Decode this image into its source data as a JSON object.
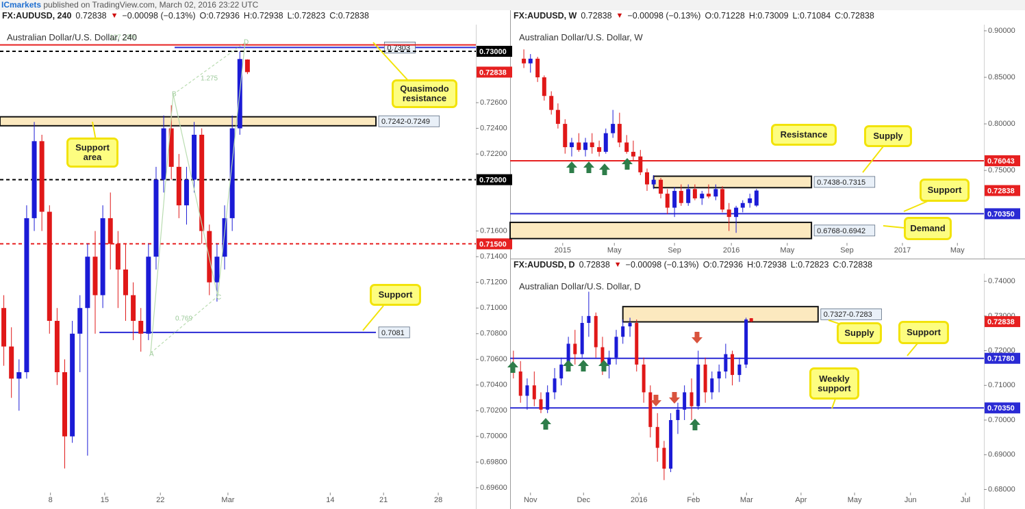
{
  "header": {
    "brand": "ICmarkets",
    "text": "published on TradingView.com, March 02, 2016 23:22 UTC"
  },
  "chart_data": [
    {
      "type": "candlestick",
      "symbol": "FX:AUDUSD, 240",
      "last": "0.72838",
      "direction": "▼",
      "change": "−0.00098 (−0.13%)",
      "ohlc": [
        "O:0.72936",
        "H:0.72938",
        "L:0.72823",
        "C:0.72838"
      ],
      "title": "Australian Dollar/U.S. Dollar, 240",
      "up_color": "#1b1bd6",
      "down_color": "#e01818",
      "xlim": [
        0,
        100
      ],
      "xticks": [
        {
          "value": 10.6,
          "label": "8"
        },
        {
          "value": 22,
          "label": "15"
        },
        {
          "value": 33.7,
          "label": "22"
        },
        {
          "value": 47.9,
          "label": "Mar"
        },
        {
          "value": 69.4,
          "label": "14"
        },
        {
          "value": 80.6,
          "label": "21"
        },
        {
          "value": 92.1,
          "label": "28"
        }
      ],
      "ylim": [
        0.69562,
        0.73208
      ],
      "yticks": [
        {
          "value": 0.726,
          "label": "0.72600"
        },
        {
          "value": 0.724,
          "label": "0.72400"
        },
        {
          "value": 0.722,
          "label": "0.72200"
        },
        {
          "value": 0.716,
          "label": "0.71600"
        },
        {
          "value": 0.714,
          "label": "0.71400"
        },
        {
          "value": 0.712,
          "label": "0.71200"
        },
        {
          "value": 0.71,
          "label": "0.71000"
        },
        {
          "value": 0.708,
          "label": "0.70800"
        },
        {
          "value": 0.706,
          "label": "0.70600"
        },
        {
          "value": 0.704,
          "label": "0.70400"
        },
        {
          "value": 0.702,
          "label": "0.70200"
        },
        {
          "value": 0.7,
          "label": "0.70000"
        },
        {
          "value": 0.698,
          "label": "0.69800"
        },
        {
          "value": 0.696,
          "label": "0.69600"
        }
      ],
      "x": [
        0.8,
        2.4,
        4.0,
        5.6,
        7.2,
        8.8,
        10.4,
        12.0,
        13.6,
        15.2,
        16.8,
        18.4,
        20.0,
        21.6,
        23.2,
        24.8,
        26.4,
        28.0,
        29.6,
        31.2,
        32.8,
        34.4,
        36.0,
        37.6,
        39.2,
        40.8,
        42.4,
        44.0,
        45.6,
        47.2,
        48.8,
        50.4,
        52.0
      ],
      "open": [
        0.71,
        0.707,
        0.7045,
        0.705,
        0.717,
        0.723,
        0.7175,
        0.709,
        0.705,
        0.7,
        0.708,
        0.71,
        0.714,
        0.711,
        0.717,
        0.715,
        0.713,
        0.711,
        0.709,
        0.708,
        0.714,
        0.72,
        0.724,
        0.721,
        0.718,
        0.72,
        0.7235,
        0.716,
        0.712,
        0.714,
        0.717,
        0.724,
        0.72936
      ],
      "high": [
        0.711,
        0.7085,
        0.706,
        0.718,
        0.7245,
        0.7235,
        0.718,
        0.71,
        0.706,
        0.709,
        0.711,
        0.715,
        0.716,
        0.718,
        0.719,
        0.716,
        0.715,
        0.712,
        0.71,
        0.715,
        0.721,
        0.725,
        0.7258,
        0.722,
        0.721,
        0.7245,
        0.724,
        0.7165,
        0.715,
        0.718,
        0.725,
        0.73,
        0.72938
      ],
      "low": [
        0.7055,
        0.703,
        0.702,
        0.7045,
        0.716,
        0.716,
        0.708,
        0.704,
        0.6975,
        0.6995,
        0.705,
        0.6985,
        0.708,
        0.71,
        0.713,
        0.71,
        0.709,
        0.7075,
        0.7066,
        0.7075,
        0.713,
        0.719,
        0.72,
        0.717,
        0.7165,
        0.719,
        0.715,
        0.711,
        0.7105,
        0.713,
        0.716,
        0.7235,
        0.72823
      ],
      "close": [
        0.707,
        0.7045,
        0.705,
        0.717,
        0.723,
        0.7175,
        0.709,
        0.705,
        0.7,
        0.708,
        0.71,
        0.714,
        0.711,
        0.717,
        0.715,
        0.713,
        0.711,
        0.709,
        0.708,
        0.714,
        0.72,
        0.724,
        0.721,
        0.718,
        0.72,
        0.7235,
        0.716,
        0.712,
        0.714,
        0.717,
        0.724,
        0.7294,
        0.72838
      ],
      "zones": [
        {
          "low": 0.7242,
          "high": 0.7249,
          "label": "0.7242-0.7249",
          "x_start": 0,
          "x_end": 79
        }
      ],
      "levels": [
        {
          "value": 0.7303,
          "color": "#2a2ad4",
          "style": "solid",
          "label": "0.7303",
          "x_start": 36.7
        },
        {
          "value": 0.7305,
          "color": "#e62020",
          "style": "solid"
        },
        {
          "value": 0.73,
          "color": "#000000",
          "style": "dashed"
        },
        {
          "value": 0.72,
          "color": "#000000",
          "style": "dashed"
        },
        {
          "value": 0.715,
          "color": "#e62020",
          "style": "dashed"
        },
        {
          "value": 0.7081,
          "color": "#2a2ad4",
          "style": "solid",
          "label": "0.7081",
          "x_start": 20.9,
          "x_end": 79
        }
      ],
      "price_labels": [
        {
          "value": 0.73,
          "label": "0.73000",
          "color": "#000000"
        },
        {
          "value": 0.72838,
          "label": "0.72838",
          "color": "#e62020"
        },
        {
          "value": 0.72,
          "label": "0.72000",
          "color": "#000000"
        },
        {
          "value": 0.715,
          "label": "0.71500",
          "color": "#e62020"
        }
      ],
      "pattern": {
        "points": [
          "A",
          "B",
          "C",
          "D"
        ],
        "ratios": [
          "1.275",
          "0.769"
        ],
        "extension": "127.20%"
      },
      "annotations": [
        "Quasimodo\nresistance",
        "Support\narea",
        "Support"
      ]
    },
    {
      "type": "candlestick",
      "symbol": "FX:AUDUSD, W",
      "last": "0.72838",
      "direction": "▼",
      "change": "−0.00098 (−0.13%)",
      "ohlc": [
        "O:0.71228",
        "H:0.73009",
        "L:0.71084",
        "C:0.72838"
      ],
      "title": "Australian Dollar/U.S. Dollar, W",
      "up_color": "#1b1bd6",
      "down_color": "#e01818",
      "xlim": [
        0,
        100
      ],
      "xticks": [
        {
          "value": 11.1,
          "label": "2015"
        },
        {
          "value": 22,
          "label": "May"
        },
        {
          "value": 34.7,
          "label": "Sep"
        },
        {
          "value": 46.7,
          "label": "2016"
        },
        {
          "value": 58.5,
          "label": "May"
        },
        {
          "value": 71.1,
          "label": "Sep"
        },
        {
          "value": 82.8,
          "label": "2017"
        },
        {
          "value": 94.4,
          "label": "May"
        }
      ],
      "ylim": [
        0.6722,
        0.9066
      ],
      "yticks": [
        {
          "value": 0.9,
          "label": "0.90000"
        },
        {
          "value": 0.85,
          "label": "0.85000"
        },
        {
          "value": 0.8,
          "label": "0.80000"
        },
        {
          "value": 0.75,
          "label": "0.75000"
        }
      ],
      "x": [
        2.9,
        4.3,
        5.8,
        7.2,
        8.7,
        10.1,
        11.6,
        13.0,
        14.5,
        15.9,
        17.3,
        18.8,
        20.2,
        21.7,
        23.1,
        24.6,
        26.0,
        27.5,
        28.9,
        30.3,
        31.8,
        33.2,
        34.7,
        36.1,
        37.6,
        39.0,
        40.5,
        41.9,
        43.4,
        44.8,
        46.2,
        47.7,
        49.1,
        50.6,
        52.0
      ],
      "open": [
        0.87,
        0.865,
        0.87,
        0.85,
        0.83,
        0.815,
        0.8,
        0.775,
        0.78,
        0.772,
        0.78,
        0.775,
        0.77,
        0.79,
        0.8,
        0.78,
        0.77,
        0.765,
        0.748,
        0.735,
        0.74,
        0.725,
        0.71,
        0.728,
        0.715,
        0.73,
        0.72,
        0.725,
        0.722,
        0.73,
        0.708,
        0.7,
        0.71,
        0.715,
        0.71228
      ],
      "high": [
        0.88,
        0.875,
        0.872,
        0.852,
        0.835,
        0.822,
        0.805,
        0.785,
        0.79,
        0.785,
        0.79,
        0.782,
        0.795,
        0.815,
        0.812,
        0.788,
        0.782,
        0.772,
        0.752,
        0.745,
        0.742,
        0.73,
        0.732,
        0.735,
        0.735,
        0.735,
        0.728,
        0.735,
        0.735,
        0.733,
        0.715,
        0.712,
        0.718,
        0.725,
        0.73009
      ],
      "low": [
        0.86,
        0.855,
        0.845,
        0.825,
        0.81,
        0.795,
        0.768,
        0.765,
        0.77,
        0.765,
        0.768,
        0.765,
        0.768,
        0.785,
        0.775,
        0.768,
        0.76,
        0.745,
        0.728,
        0.73,
        0.72,
        0.703,
        0.7,
        0.712,
        0.712,
        0.718,
        0.713,
        0.72,
        0.718,
        0.705,
        0.685,
        0.683,
        0.705,
        0.71,
        0.71084
      ],
      "close": [
        0.865,
        0.87,
        0.85,
        0.83,
        0.815,
        0.8,
        0.775,
        0.78,
        0.772,
        0.78,
        0.775,
        0.77,
        0.79,
        0.8,
        0.78,
        0.77,
        0.765,
        0.748,
        0.735,
        0.74,
        0.725,
        0.71,
        0.728,
        0.715,
        0.73,
        0.72,
        0.725,
        0.722,
        0.73,
        0.708,
        0.7,
        0.71,
        0.715,
        0.72,
        0.72838
      ],
      "zones": [
        {
          "low": 0.7315,
          "high": 0.7438,
          "label": "0.7438-0.7315",
          "x_start": 30.3,
          "x_end": 63.6
        },
        {
          "low": 0.6768,
          "high": 0.6942,
          "label": "0.6768-0.6942",
          "x_start": 0,
          "x_end": 63.6
        }
      ],
      "levels": [
        {
          "value": 0.7604,
          "color": "#e62020",
          "style": "solid"
        },
        {
          "value": 0.7035,
          "color": "#2a2ad4",
          "style": "solid"
        }
      ],
      "price_labels": [
        {
          "value": 0.7604,
          "label": "0.76043",
          "color": "#e62020"
        },
        {
          "value": 0.72838,
          "label": "0.72838",
          "color": "#e62020"
        },
        {
          "value": 0.7035,
          "label": "0.70350",
          "color": "#2a2ad4"
        }
      ],
      "annotations": [
        "Resistance",
        "Supply",
        "Support",
        "Demand"
      ]
    },
    {
      "type": "candlestick",
      "symbol": "FX:AUDUSD, D",
      "last": "0.72838",
      "direction": "▼",
      "change": "−0.00098 (−0.13%)",
      "ohlc": [
        "O:0.72936",
        "H:0.72938",
        "L:0.72823",
        "C:0.72838"
      ],
      "title": "Australian Dollar/U.S. Dollar, D",
      "up_color": "#1b1bd6",
      "down_color": "#e01818",
      "xlim": [
        0,
        100
      ],
      "xticks": [
        {
          "value": 4.3,
          "label": "Nov"
        },
        {
          "value": 15.5,
          "label": "Dec"
        },
        {
          "value": 27.2,
          "label": "2016"
        },
        {
          "value": 38.7,
          "label": "Feb"
        },
        {
          "value": 49.9,
          "label": "Mar"
        },
        {
          "value": 61.4,
          "label": "Apr"
        },
        {
          "value": 72.7,
          "label": "May"
        },
        {
          "value": 84.5,
          "label": "Jun"
        },
        {
          "value": 96.1,
          "label": "Jul"
        }
      ],
      "ylim": [
        0.6791,
        0.7422
      ],
      "yticks": [
        {
          "value": 0.74,
          "label": "0.74000"
        },
        {
          "value": 0.73,
          "label": "0.73000"
        },
        {
          "value": 0.72,
          "label": "0.72000"
        },
        {
          "value": 0.71,
          "label": "0.71000"
        },
        {
          "value": 0.7,
          "label": "0.70000"
        },
        {
          "value": 0.69,
          "label": "0.69000"
        },
        {
          "value": 0.68,
          "label": "0.68000"
        }
      ],
      "x": [
        0.7,
        2.2,
        3.6,
        5.1,
        6.5,
        7.9,
        9.4,
        10.8,
        12.3,
        13.7,
        15.2,
        16.6,
        18.1,
        19.5,
        20.9,
        22.4,
        23.8,
        25.3,
        26.7,
        28.2,
        29.6,
        31.1,
        32.5,
        33.9,
        35.4,
        36.8,
        38.3,
        39.7,
        41.2,
        42.6,
        44.1,
        45.5,
        46.9,
        48.4,
        49.8,
        50.9
      ],
      "open": [
        0.716,
        0.714,
        0.707,
        0.71,
        0.706,
        0.703,
        0.708,
        0.712,
        0.716,
        0.722,
        0.719,
        0.728,
        0.73,
        0.721,
        0.716,
        0.718,
        0.724,
        0.727,
        0.728,
        0.716,
        0.708,
        0.698,
        0.692,
        0.686,
        0.7,
        0.703,
        0.708,
        0.704,
        0.716,
        0.708,
        0.712,
        0.714,
        0.719,
        0.713,
        0.716,
        0.72936
      ],
      "high": [
        0.72,
        0.717,
        0.712,
        0.714,
        0.708,
        0.71,
        0.715,
        0.718,
        0.724,
        0.726,
        0.73,
        0.737,
        0.731,
        0.724,
        0.72,
        0.726,
        0.729,
        0.7295,
        0.729,
        0.718,
        0.71,
        0.702,
        0.694,
        0.702,
        0.705,
        0.71,
        0.712,
        0.72,
        0.718,
        0.714,
        0.716,
        0.722,
        0.72,
        0.718,
        0.7295,
        0.72938
      ],
      "low": [
        0.712,
        0.705,
        0.703,
        0.704,
        0.702,
        0.702,
        0.706,
        0.71,
        0.714,
        0.716,
        0.718,
        0.724,
        0.718,
        0.713,
        0.712,
        0.716,
        0.722,
        0.724,
        0.714,
        0.705,
        0.695,
        0.688,
        0.6827,
        0.685,
        0.696,
        0.7,
        0.7,
        0.703,
        0.705,
        0.706,
        0.708,
        0.712,
        0.71,
        0.711,
        0.715,
        0.72823
      ],
      "close": [
        0.714,
        0.707,
        0.71,
        0.706,
        0.703,
        0.708,
        0.712,
        0.716,
        0.722,
        0.719,
        0.728,
        0.73,
        0.721,
        0.716,
        0.718,
        0.724,
        0.727,
        0.728,
        0.716,
        0.708,
        0.698,
        0.692,
        0.686,
        0.7,
        0.703,
        0.708,
        0.704,
        0.716,
        0.708,
        0.712,
        0.714,
        0.719,
        0.713,
        0.716,
        0.729,
        0.72838
      ],
      "zones": [
        {
          "low": 0.7283,
          "high": 0.7327,
          "label": "0.7327-0.7283",
          "x_start": 23.8,
          "x_end": 65.0
        }
      ],
      "levels": [
        {
          "value": 0.7178,
          "color": "#2a2ad4",
          "style": "solid"
        },
        {
          "value": 0.7035,
          "color": "#2a2ad4",
          "style": "solid"
        }
      ],
      "price_labels": [
        {
          "value": 0.72838,
          "label": "0.72838",
          "color": "#e62020"
        },
        {
          "value": 0.7178,
          "label": "0.71780",
          "color": "#2a2ad4"
        },
        {
          "value": 0.7035,
          "label": "0.70350",
          "color": "#2a2ad4"
        }
      ],
      "annotations": [
        "Supply",
        "Support",
        "Weekly\nsupport"
      ]
    }
  ]
}
